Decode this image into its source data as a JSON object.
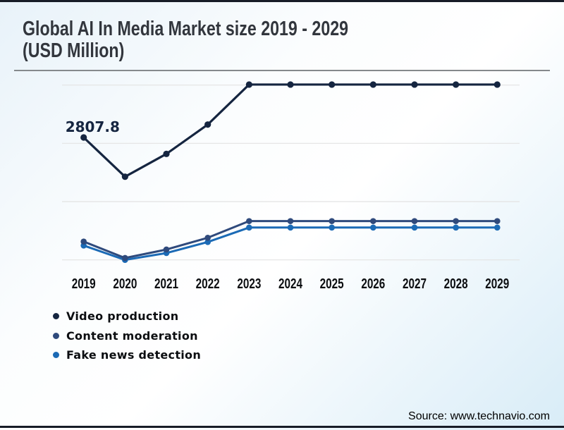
{
  "page": {
    "title_line1": "Global AI In Media Market size 2019 - 2029",
    "title_line2": "(USD Million)",
    "source": "Source: www.technavio.com"
  },
  "colors": {
    "background_edge": "#d8ecf7",
    "background_center": "#ffffff",
    "border_bar": "#171c27",
    "title_text": "#32363d",
    "divider": "#85898c",
    "gridline": "#e3e3e3",
    "axis_label_text": "#0c0e11",
    "legend_text": "#0c0e11"
  },
  "chart_data": {
    "type": "line",
    "title": "Global AI In Media Market size 2019 - 2029 (USD Million)",
    "xlabel": "",
    "ylabel": "",
    "categories": [
      "2019",
      "2020",
      "2021",
      "2022",
      "2023",
      "2024",
      "2025",
      "2026",
      "2027",
      "2028",
      "2029"
    ],
    "series": [
      {
        "name": "Video production",
        "color": "#152540",
        "values": [
          2807.8,
          1908,
          2431,
          3104,
          4021,
          4021,
          4021,
          4021,
          4021,
          4021,
          4021
        ]
      },
      {
        "name": "Content moderation",
        "color": "#2F4A7C",
        "values": [
          420,
          44,
          238,
          508,
          890,
          890,
          890,
          890,
          890,
          890,
          890
        ]
      },
      {
        "name": "Fake news detection",
        "color": "#1B6AB5",
        "values": [
          330,
          0,
          157,
          411,
          742,
          742,
          742,
          742,
          742,
          742,
          742
        ]
      }
    ],
    "annotations": [
      {
        "series": "Video production",
        "category": "2019",
        "label": "2807.8"
      }
    ],
    "ylim": [
      0,
      4300
    ],
    "y_axis_ticks": "none (unlabeled horizontal gridlines only)",
    "grid": "horizontal",
    "legend_position": "bottom-left",
    "note_on_values": "Only the 2019 Video production point is labeled (2807.8); other values estimated from gridline geometry."
  }
}
